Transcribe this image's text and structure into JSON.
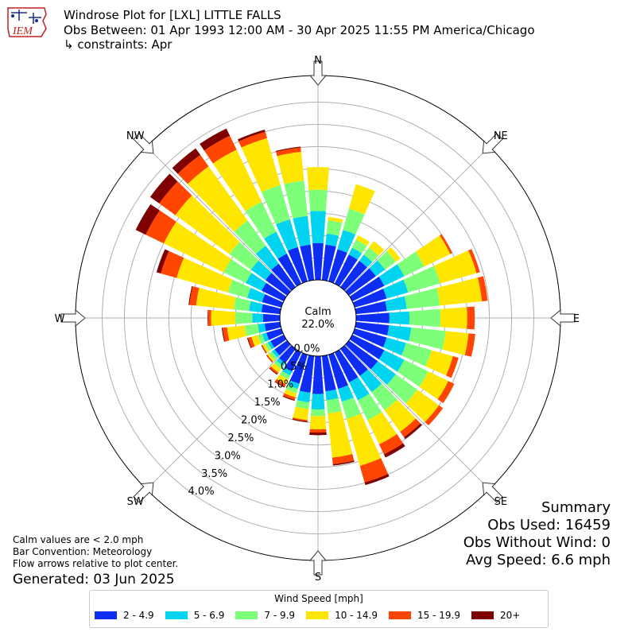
{
  "header": {
    "title": "Windrose Plot for [LXL] LITTLE FALLS",
    "subtitle": "Obs Between: 01 Apr 1993 12:00 AM - 30 Apr 2025 11:55 PM America/Chicago",
    "constraints": "↳ constraints: Apr",
    "logo_text": "IEM"
  },
  "notes": {
    "calm_note": "Calm values are < 2.0 mph",
    "bar_convention": "Bar Convention: Meteorology",
    "flow_note": "Flow arrows relative to plot center.",
    "generated": "Generated: 03 Jun 2025"
  },
  "summary": {
    "heading": "Summary",
    "obs_used": "Obs Used: 16459",
    "obs_without_wind": "Obs Without Wind: 0",
    "avg_speed": "Avg Speed: 6.6 mph"
  },
  "chart_data": {
    "type": "windrose",
    "calm_label": "Calm",
    "calm_percent": "22.0%",
    "radial_tick_labels": [
      "0.0%",
      "0.5%",
      "1.0%",
      "1.5%",
      "2.0%",
      "2.5%",
      "3.0%",
      "3.5%",
      "4.0%"
    ],
    "radial_ticks": [
      0.0,
      0.5,
      1.0,
      1.5,
      2.0,
      2.5,
      3.0,
      3.5,
      4.0
    ],
    "rlim": [
      0,
      4.6
    ],
    "direction_labels": [
      "N",
      "NE",
      "E",
      "SE",
      "S",
      "SW",
      "W",
      "NW"
    ],
    "legend_title": "Wind Speed [mph]",
    "speed_bins": [
      "2 - 4.9",
      "5 - 6.9",
      "7 - 9.9",
      "10 - 14.9",
      "15 - 19.9",
      "20+"
    ],
    "colors": [
      "#0d2ef2",
      "#00d4f0",
      "#7dff7a",
      "#ffe600",
      "#ff4500",
      "#7f0000"
    ],
    "directions_deg": [
      0,
      10,
      20,
      30,
      40,
      50,
      60,
      70,
      80,
      90,
      100,
      110,
      120,
      130,
      140,
      150,
      160,
      170,
      180,
      190,
      200,
      210,
      220,
      230,
      240,
      250,
      260,
      270,
      280,
      290,
      300,
      310,
      320,
      330,
      340,
      350
    ],
    "cumulative_percent": [
      [
        0.83,
        1.55,
        2.03,
        2.54,
        2.54,
        2.54
      ],
      [
        0.8,
        1.05,
        1.35,
        1.43,
        1.43,
        1.43
      ],
      [
        0.75,
        1.2,
        1.7,
        2.27,
        2.27,
        2.27
      ],
      [
        0.73,
        0.9,
        1.1,
        1.21,
        1.21,
        1.21
      ],
      [
        0.73,
        0.9,
        1.1,
        1.28,
        1.28,
        1.28
      ],
      [
        0.75,
        1.0,
        1.3,
        1.43,
        1.43,
        1.43
      ],
      [
        0.8,
        1.3,
        1.8,
        2.45,
        2.5,
        2.5
      ],
      [
        0.75,
        1.25,
        2.0,
        2.85,
        2.93,
        2.93
      ],
      [
        0.7,
        1.15,
        1.9,
        2.85,
        2.98,
        2.98
      ],
      [
        0.75,
        1.2,
        1.9,
        2.5,
        2.67,
        2.67
      ],
      [
        0.75,
        1.25,
        2.03,
        2.55,
        2.7,
        2.7
      ],
      [
        0.75,
        1.2,
        1.8,
        2.3,
        2.43,
        2.43
      ],
      [
        0.8,
        1.3,
        1.9,
        2.4,
        2.55,
        2.55
      ],
      [
        0.8,
        1.3,
        1.9,
        2.5,
        2.61,
        2.61
      ],
      [
        0.75,
        1.2,
        1.7,
        2.3,
        2.45,
        2.5
      ],
      [
        0.75,
        1.2,
        1.7,
        2.3,
        2.55,
        2.63
      ],
      [
        0.8,
        1.1,
        1.5,
        2.6,
        2.99,
        3.05
      ],
      [
        0.8,
        1.0,
        1.3,
        2.3,
        2.45,
        2.48
      ],
      [
        0.85,
        1.2,
        1.35,
        1.65,
        1.72,
        1.78
      ],
      [
        0.83,
        1.05,
        1.2,
        1.45,
        1.48,
        1.5
      ],
      [
        0.68,
        0.8,
        0.9,
        1.0,
        1.06,
        1.08
      ],
      [
        0.48,
        0.58,
        0.68,
        0.8,
        0.86,
        0.88
      ],
      [
        0.4,
        0.48,
        0.56,
        0.66,
        0.7,
        0.72
      ],
      [
        0.35,
        0.42,
        0.5,
        0.55,
        0.57,
        0.58
      ],
      [
        0.33,
        0.4,
        0.47,
        0.53,
        0.55,
        0.56
      ],
      [
        0.35,
        0.45,
        0.55,
        0.7,
        0.78,
        0.8
      ],
      [
        0.35,
        0.5,
        0.8,
        1.2,
        1.3,
        1.32
      ],
      [
        0.38,
        0.62,
        1.0,
        1.55,
        1.62,
        1.63
      ],
      [
        0.42,
        0.7,
        1.05,
        1.9,
        2.05,
        2.07
      ],
      [
        0.45,
        0.8,
        1.25,
        2.45,
        2.82,
        2.92
      ],
      [
        0.55,
        0.95,
        1.5,
        3.0,
        3.45,
        3.7
      ],
      [
        0.6,
        1.0,
        1.6,
        3.1,
        3.55,
        3.8
      ],
      [
        0.65,
        1.15,
        1.85,
        3.35,
        3.67,
        3.85
      ],
      [
        0.75,
        1.3,
        2.05,
        3.35,
        3.7,
        3.88
      ],
      [
        0.8,
        1.45,
        2.25,
        3.35,
        3.5,
        3.55
      ],
      [
        0.8,
        1.45,
        2.25,
        2.9,
        3.0,
        3.02
      ]
    ]
  }
}
